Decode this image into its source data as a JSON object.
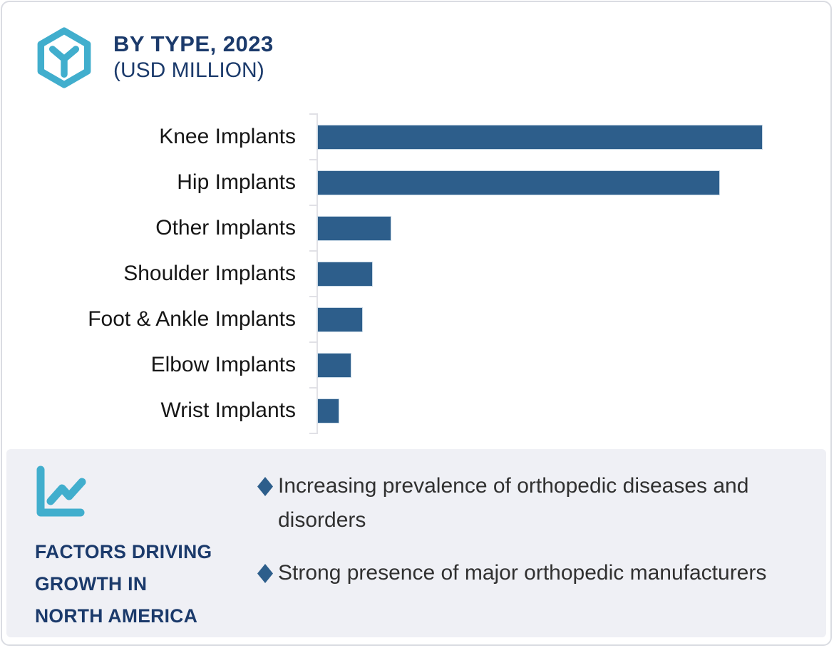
{
  "header": {
    "title": "BY TYPE, 2023",
    "subtitle": "(USD MILLION)",
    "icon": "hexagon-cube-icon"
  },
  "chart_data": {
    "type": "bar",
    "orientation": "horizontal",
    "title": "BY TYPE, 2023 (USD MILLION)",
    "categories": [
      "Knee Implants",
      "Hip Implants",
      "Other Implants",
      "Shoulder Implants",
      "Foot & Ankle Implants",
      "Elbow Implants",
      "Wrist Implants"
    ],
    "values": [
      100,
      90.4,
      16.4,
      12.2,
      10.0,
      7.4,
      4.7
    ],
    "value_unit": "percent of longest bar (no numeric data labels shown on chart)",
    "xlabel": "",
    "ylabel": "",
    "xlim": [
      0,
      100
    ],
    "grid": false,
    "legend": false,
    "bar_color": "#2d5e8b",
    "axis_color": "#e1e1e6"
  },
  "factors": {
    "icon": "line-chart-icon",
    "title_lines": [
      "FACTORS DRIVING",
      "GROWTH IN",
      "NORTH AMERICA"
    ],
    "items": [
      "Increasing prevalence of orthopedic diseases and disorders",
      "Strong presence of major orthopedic manufacturers"
    ],
    "bullet_glyph": "diamond-icon",
    "bullet_color": "#2d5e8b"
  },
  "colors": {
    "accent_teal": "#41aecd",
    "navy": "#1b3a6b",
    "bar_blue": "#2d5e8b",
    "panel_bg": "#eff0f5",
    "page_border": "#dadce2"
  }
}
